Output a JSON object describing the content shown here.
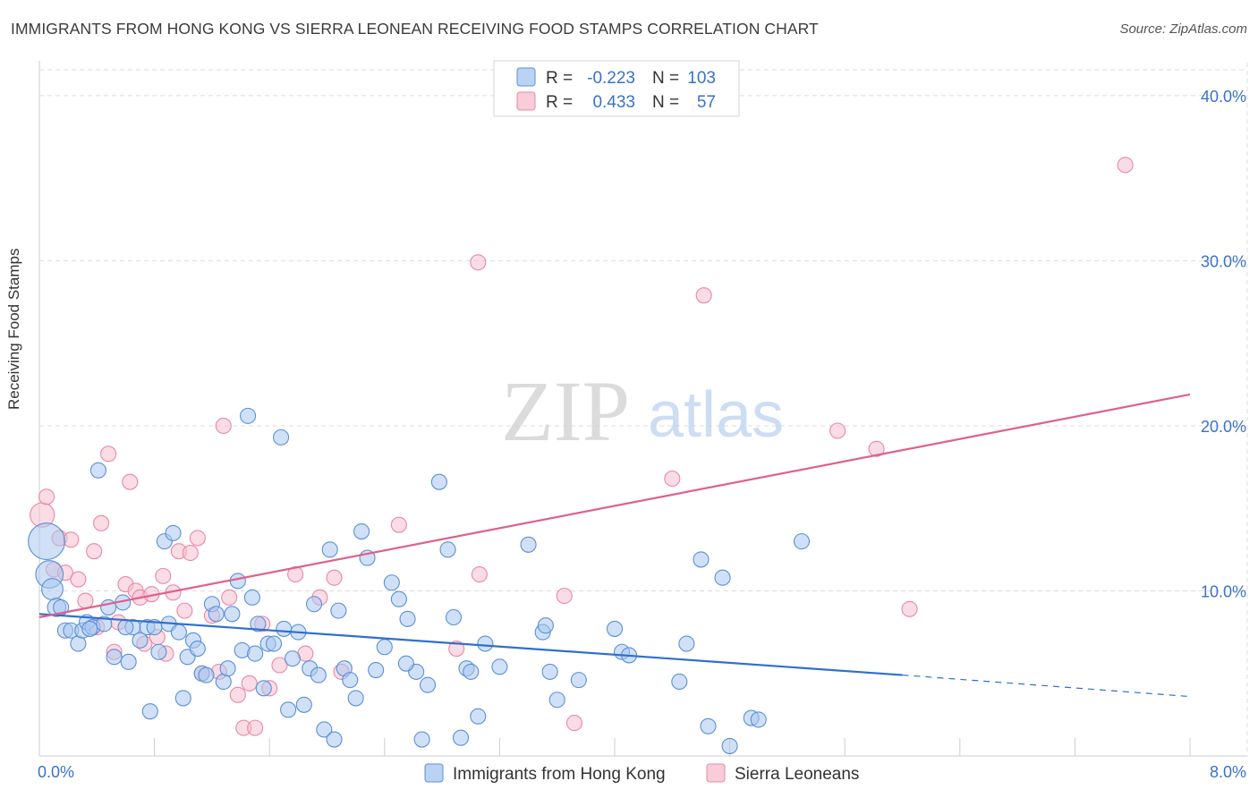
{
  "title": "IMMIGRANTS FROM HONG KONG VS SIERRA LEONEAN RECEIVING FOOD STAMPS CORRELATION CHART",
  "source": "Source: ZipAtlas.com",
  "watermark": {
    "zip": "ZIP",
    "atlas": "atlas"
  },
  "colors": {
    "blue_fill": "#a9c8f0",
    "blue_stroke": "#5b8fd6",
    "blue_line": "#2f6fd0",
    "pink_fill": "#f6bfd0",
    "pink_stroke": "#e888a8",
    "pink_line": "#e0608a",
    "axis_text": "#3a72c8",
    "grid": "#dddddd"
  },
  "legend": {
    "rows": [
      {
        "r_label": "R =",
        "r_value": "-0.223",
        "n_label": "N =",
        "n_value": "103",
        "color": "blue"
      },
      {
        "r_label": "R =",
        "r_value": "0.433",
        "n_label": "N =",
        "n_value": "57",
        "color": "pink"
      }
    ]
  },
  "bottom_legend": [
    {
      "label": "Immigrants from Hong Kong",
      "color": "blue"
    },
    {
      "label": "Sierra Leoneans",
      "color": "pink"
    }
  ],
  "chart_data": {
    "type": "scatter",
    "title": "IMMIGRANTS FROM HONG KONG VS SIERRA LEONEAN RECEIVING FOOD STAMPS CORRELATION CHART",
    "xlabel": "",
    "ylabel": "Receiving Food Stamps",
    "xlim": [
      0,
      8
    ],
    "ylim": [
      0,
      42
    ],
    "x_tick_labels": [
      "0.0%",
      "8.0%"
    ],
    "y_ticks": [
      10,
      20,
      30,
      40
    ],
    "y_tick_labels": [
      "10.0%",
      "20.0%",
      "30.0%",
      "40.0%"
    ],
    "grid": true,
    "legend_position": "top-center",
    "series": [
      {
        "name": "Immigrants from Hong Kong",
        "color": "blue",
        "trend": {
          "x": [
            0,
            6.0
          ],
          "y": [
            8.6,
            4.9
          ],
          "dashed_to": [
            8.0,
            3.6
          ]
        },
        "points": [
          [
            0.05,
            13.0,
            2.4
          ],
          [
            0.07,
            11.0,
            1.8
          ],
          [
            0.09,
            10.1,
            1.4
          ],
          [
            0.12,
            9.0,
            1.2
          ],
          [
            0.15,
            9.0,
            1
          ],
          [
            0.18,
            7.6,
            1
          ],
          [
            0.22,
            7.6,
            1
          ],
          [
            0.27,
            6.8,
            1
          ],
          [
            0.3,
            7.6,
            1
          ],
          [
            0.33,
            8.1,
            1
          ],
          [
            0.37,
            7.8,
            1
          ],
          [
            0.41,
            17.3,
            1
          ],
          [
            0.45,
            8.0,
            1
          ],
          [
            0.48,
            9.0,
            1
          ],
          [
            0.52,
            6.0,
            1
          ],
          [
            0.58,
            9.3,
            1
          ],
          [
            0.62,
            5.7,
            1
          ],
          [
            0.65,
            7.8,
            1
          ],
          [
            0.7,
            7.0,
            1
          ],
          [
            0.75,
            7.8,
            1
          ],
          [
            0.77,
            2.7,
            1
          ],
          [
            0.8,
            7.8,
            1
          ],
          [
            0.83,
            6.3,
            1
          ],
          [
            0.87,
            13.0,
            1
          ],
          [
            0.9,
            8.0,
            1
          ],
          [
            0.93,
            13.5,
            1
          ],
          [
            0.97,
            7.5,
            1
          ],
          [
            1.0,
            3.5,
            1
          ],
          [
            1.03,
            6.0,
            1
          ],
          [
            1.07,
            7.0,
            1
          ],
          [
            1.1,
            6.5,
            1
          ],
          [
            1.13,
            5.0,
            1
          ],
          [
            1.16,
            4.9,
            1
          ],
          [
            1.2,
            9.2,
            1
          ],
          [
            1.23,
            8.6,
            1
          ],
          [
            1.28,
            4.5,
            1
          ],
          [
            1.31,
            5.3,
            1
          ],
          [
            1.34,
            8.6,
            1
          ],
          [
            1.38,
            10.6,
            1
          ],
          [
            1.41,
            6.4,
            1
          ],
          [
            1.45,
            20.6,
            1
          ],
          [
            1.48,
            9.6,
            1
          ],
          [
            1.52,
            8.0,
            1
          ],
          [
            1.56,
            4.1,
            1
          ],
          [
            1.59,
            6.8,
            1
          ],
          [
            1.63,
            6.8,
            1
          ],
          [
            1.68,
            19.3,
            1
          ],
          [
            1.7,
            7.7,
            1
          ],
          [
            1.73,
            2.8,
            1
          ],
          [
            1.76,
            5.9,
            1
          ],
          [
            1.8,
            7.5,
            1
          ],
          [
            1.84,
            3.1,
            1
          ],
          [
            1.88,
            5.3,
            1
          ],
          [
            1.91,
            9.2,
            1
          ],
          [
            1.94,
            4.9,
            1
          ],
          [
            1.98,
            1.6,
            1
          ],
          [
            2.02,
            12.5,
            1
          ],
          [
            2.05,
            1.0,
            1
          ],
          [
            2.08,
            8.8,
            1
          ],
          [
            2.12,
            5.3,
            1
          ],
          [
            2.16,
            4.6,
            1
          ],
          [
            2.2,
            3.5,
            1
          ],
          [
            2.24,
            13.6,
            1
          ],
          [
            2.28,
            12.0,
            1
          ],
          [
            2.34,
            5.2,
            1
          ],
          [
            2.4,
            6.6,
            1
          ],
          [
            2.45,
            10.5,
            1
          ],
          [
            2.5,
            9.5,
            1
          ],
          [
            2.56,
            8.3,
            1
          ],
          [
            2.62,
            5.1,
            1
          ],
          [
            2.66,
            1.0,
            1
          ],
          [
            2.7,
            4.3,
            1
          ],
          [
            2.78,
            16.6,
            1
          ],
          [
            2.84,
            12.5,
            1
          ],
          [
            2.88,
            8.4,
            1
          ],
          [
            2.93,
            1.1,
            1
          ],
          [
            2.97,
            5.3,
            1
          ],
          [
            3.0,
            5.1,
            1
          ],
          [
            3.05,
            2.4,
            1
          ],
          [
            3.1,
            6.8,
            1
          ],
          [
            3.2,
            5.4,
            1
          ],
          [
            3.4,
            12.8,
            1
          ],
          [
            3.5,
            7.5,
            1
          ],
          [
            3.55,
            5.1,
            1
          ],
          [
            3.6,
            3.4,
            1
          ],
          [
            3.75,
            4.6,
            1
          ],
          [
            4.0,
            7.7,
            1
          ],
          [
            4.05,
            6.3,
            1
          ],
          [
            4.1,
            6.1,
            1
          ],
          [
            4.5,
            6.8,
            1
          ],
          [
            4.45,
            4.5,
            1
          ],
          [
            4.6,
            11.9,
            1
          ],
          [
            4.65,
            1.8,
            1
          ],
          [
            4.75,
            10.8,
            1
          ],
          [
            4.8,
            0.6,
            1
          ],
          [
            4.95,
            2.3,
            1
          ],
          [
            5.0,
            2.2,
            1
          ],
          [
            5.3,
            13.0,
            1
          ],
          [
            0.35,
            7.7,
            1
          ],
          [
            0.6,
            7.8,
            1
          ],
          [
            1.5,
            6.2,
            1
          ],
          [
            2.55,
            5.6,
            1
          ],
          [
            3.52,
            7.9,
            1
          ]
        ]
      },
      {
        "name": "Sierra Leoneans",
        "color": "pink",
        "trend": {
          "x": [
            0,
            8.0
          ],
          "y": [
            8.4,
            21.9
          ]
        },
        "points": [
          [
            0.02,
            14.6,
            1.6
          ],
          [
            0.05,
            15.7,
            1
          ],
          [
            0.1,
            11.3,
            1
          ],
          [
            0.14,
            13.2,
            1
          ],
          [
            0.18,
            11.1,
            1
          ],
          [
            0.22,
            13.1,
            1
          ],
          [
            0.27,
            10.7,
            1
          ],
          [
            0.32,
            9.4,
            1
          ],
          [
            0.38,
            12.4,
            1
          ],
          [
            0.43,
            14.1,
            1
          ],
          [
            0.48,
            18.3,
            1
          ],
          [
            0.52,
            6.3,
            1
          ],
          [
            0.55,
            8.1,
            1
          ],
          [
            0.6,
            10.4,
            1
          ],
          [
            0.63,
            16.6,
            1
          ],
          [
            0.67,
            10.0,
            1
          ],
          [
            0.7,
            9.6,
            1
          ],
          [
            0.73,
            6.8,
            1
          ],
          [
            0.78,
            9.8,
            1
          ],
          [
            0.82,
            7.2,
            1
          ],
          [
            0.86,
            10.9,
            1
          ],
          [
            0.88,
            6.2,
            1
          ],
          [
            0.93,
            9.9,
            1
          ],
          [
            0.97,
            12.4,
            1
          ],
          [
            1.01,
            8.8,
            1
          ],
          [
            1.05,
            12.3,
            1
          ],
          [
            1.1,
            13.2,
            1
          ],
          [
            1.13,
            5.0,
            1
          ],
          [
            1.2,
            8.5,
            1
          ],
          [
            1.28,
            20.0,
            1
          ],
          [
            1.32,
            9.6,
            1
          ],
          [
            1.38,
            3.7,
            1
          ],
          [
            1.42,
            1.7,
            1
          ],
          [
            1.46,
            4.4,
            1
          ],
          [
            1.5,
            1.7,
            1
          ],
          [
            1.55,
            8.0,
            1
          ],
          [
            1.6,
            4.1,
            1
          ],
          [
            1.67,
            5.5,
            1
          ],
          [
            1.78,
            11.0,
            1
          ],
          [
            1.85,
            6.2,
            1
          ],
          [
            1.95,
            9.6,
            1
          ],
          [
            2.05,
            10.8,
            1
          ],
          [
            2.1,
            5.1,
            1
          ],
          [
            2.5,
            14.0,
            1
          ],
          [
            2.9,
            6.5,
            1
          ],
          [
            3.05,
            29.9,
            1
          ],
          [
            3.06,
            11.0,
            1
          ],
          [
            3.65,
            9.7,
            1
          ],
          [
            3.72,
            2.0,
            1
          ],
          [
            4.4,
            16.8,
            1
          ],
          [
            4.62,
            27.9,
            1
          ],
          [
            5.55,
            19.7,
            1
          ],
          [
            5.82,
            18.6,
            1
          ],
          [
            6.05,
            8.9,
            1
          ],
          [
            7.55,
            35.8,
            1
          ],
          [
            0.4,
            7.8,
            1
          ],
          [
            1.25,
            5.1,
            1
          ]
        ]
      }
    ]
  }
}
